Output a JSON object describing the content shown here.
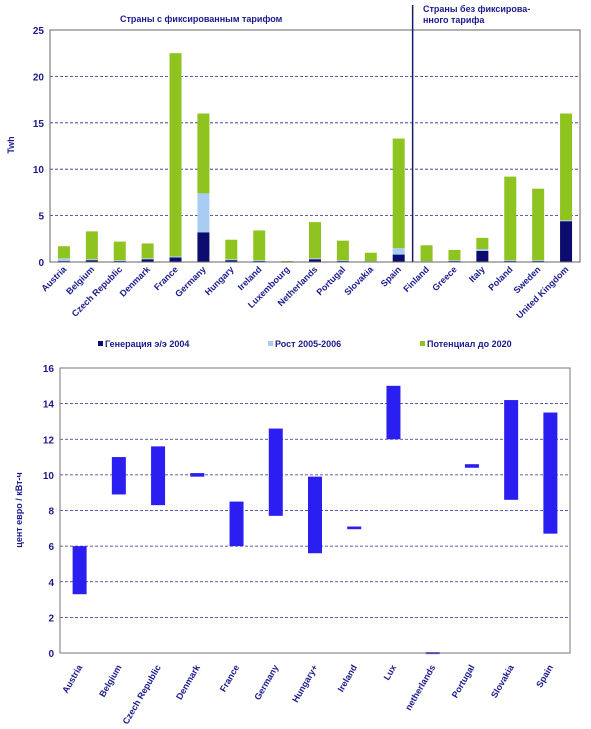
{
  "chart_data": [
    {
      "type": "bar",
      "stacked": true,
      "ylabel": "Twh",
      "ylim": [
        0,
        25
      ],
      "yticks": [
        0,
        5,
        10,
        15,
        20,
        25
      ],
      "grid": true,
      "legend_position": "bottom",
      "section_labels": [
        "Страны с фиксированным тарифом",
        "Страны без фиксирова-",
        "нного тарифа"
      ],
      "categories": [
        "Austria",
        "Belgium",
        "Czech Republic",
        "Denmark",
        "France",
        "Germany",
        "Hungary",
        "Ireland",
        "Luxembourg",
        "Netherlands",
        "Portugal",
        "Slovakia",
        "Spain",
        "Finland",
        "Greece",
        "Italy",
        "Poland",
        "Sweden",
        "United Kingdom"
      ],
      "series": [
        {
          "name": "Генерация э/э 2004",
          "color": "#0c0c6e",
          "values": [
            0.1,
            0.2,
            0.1,
            0.3,
            0.5,
            3.2,
            0.2,
            0.1,
            0.05,
            0.3,
            0.1,
            0.05,
            0.8,
            0.05,
            0.1,
            1.2,
            0.1,
            0.1,
            4.4
          ]
        },
        {
          "name": "Рост 2005-2006",
          "color": "#a9cdf2",
          "values": [
            0.3,
            0.1,
            0.1,
            0.1,
            0.1,
            4.2,
            0.1,
            0.1,
            0.0,
            0.1,
            0.1,
            0.05,
            0.7,
            0.05,
            0.1,
            0.2,
            0.1,
            0.1,
            0.1
          ]
        },
        {
          "name": "Потенциал до 2020",
          "color": "#8fc31f",
          "values": [
            1.3,
            3.0,
            2.0,
            1.6,
            21.9,
            8.6,
            2.1,
            3.2,
            0.05,
            3.9,
            2.1,
            0.9,
            11.8,
            1.7,
            1.1,
            1.2,
            9.0,
            7.7,
            11.5
          ]
        }
      ]
    },
    {
      "type": "floating_bar",
      "ylabel": "цент евро / кВт-ч",
      "ylim": [
        0,
        16
      ],
      "yticks": [
        0,
        2,
        4,
        6,
        8,
        10,
        12,
        14,
        16
      ],
      "grid": true,
      "color": "#2a1ff0",
      "categories": [
        "Austria",
        "Belgium",
        "Czech Republic",
        "Denmark",
        "France",
        "Germany",
        "Hungary+",
        "Ireland",
        "Lux",
        "netherlands",
        "Portugal",
        "Slovakia",
        "Spain"
      ],
      "ranges": [
        [
          3.3,
          6.0
        ],
        [
          8.9,
          11.0
        ],
        [
          8.3,
          11.6
        ],
        [
          9.9,
          10.1
        ],
        [
          6.0,
          8.5
        ],
        [
          7.7,
          12.6
        ],
        [
          5.6,
          9.9
        ],
        [
          6.95,
          7.1
        ],
        [
          12.0,
          15.0
        ],
        [
          0.0,
          0.05
        ],
        [
          10.4,
          10.6
        ],
        [
          8.6,
          14.2
        ],
        [
          6.7,
          13.5
        ]
      ]
    }
  ]
}
